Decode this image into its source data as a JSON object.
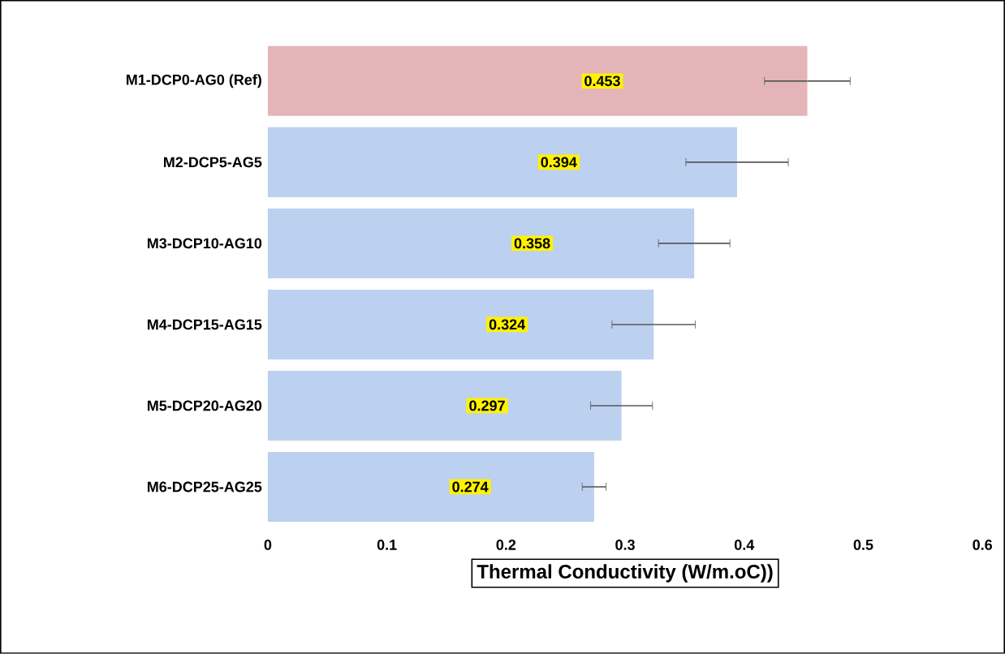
{
  "chart_data": {
    "type": "bar",
    "orientation": "horizontal",
    "xlabel": "Thermal Conductivity (W/m.oC))",
    "categories": [
      "M1-DCP0-AG0 (Ref)",
      "M2-DCP5-AG5",
      "M3-DCP10-AG10",
      "M4-DCP15-AG15",
      "M5-DCP20-AG20",
      "M6-DCP25-AG25"
    ],
    "values": [
      0.453,
      0.394,
      0.358,
      0.324,
      0.297,
      0.274
    ],
    "errors": [
      0.036,
      0.043,
      0.03,
      0.035,
      0.026,
      0.01
    ],
    "colors": [
      "#e3b5b9",
      "#bcd0f0",
      "#bcd0f0",
      "#bcd0f0",
      "#bcd0f0",
      "#bcd0f0"
    ],
    "xlim": [
      0,
      0.6
    ],
    "xticks": [
      0,
      0.1,
      0.2,
      0.3,
      0.4,
      0.5,
      0.6
    ],
    "data_labels": true,
    "grid": false
  }
}
